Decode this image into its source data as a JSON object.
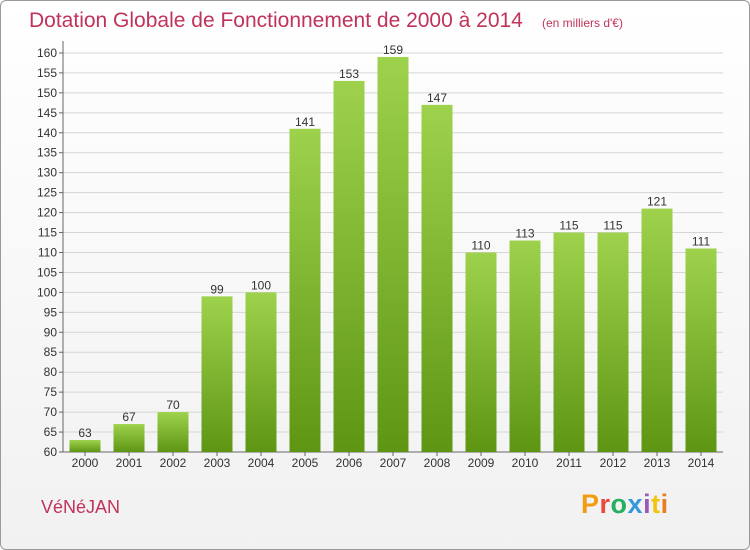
{
  "header": {
    "title": "Dotation Globale de Fonctionnement de 2000 à 2014",
    "subtitle": "(en milliers d'€)"
  },
  "footer": {
    "commune": "VéNéJAN",
    "logo_text": "Proxiti",
    "logo_colors": [
      "#f39c12",
      "#e74c3c",
      "#27ae60",
      "#3498db",
      "#9b59b6",
      "#f1c40f",
      "#e67e22"
    ]
  },
  "colors": {
    "accent": "#c0335a",
    "bar_top": "#9ed24c",
    "bar_bottom": "#5e9614"
  },
  "chart_data": {
    "type": "bar",
    "title": "Dotation Globale de Fonctionnement de 2000 à 2014",
    "subtitle": "(en milliers d'€)",
    "xlabel": "",
    "ylabel": "",
    "ylim": [
      60,
      162
    ],
    "yticks": [
      60,
      65,
      70,
      75,
      80,
      85,
      90,
      95,
      100,
      105,
      110,
      115,
      120,
      125,
      130,
      135,
      140,
      145,
      150,
      155,
      160
    ],
    "categories": [
      "2000",
      "2001",
      "2002",
      "2003",
      "2004",
      "2005",
      "2006",
      "2007",
      "2008",
      "2009",
      "2010",
      "2011",
      "2012",
      "2013",
      "2014"
    ],
    "values": [
      63,
      67,
      70,
      99,
      100,
      141,
      153,
      159,
      147,
      110,
      113,
      115,
      115,
      121,
      111
    ],
    "grid": true,
    "legend": "none"
  }
}
